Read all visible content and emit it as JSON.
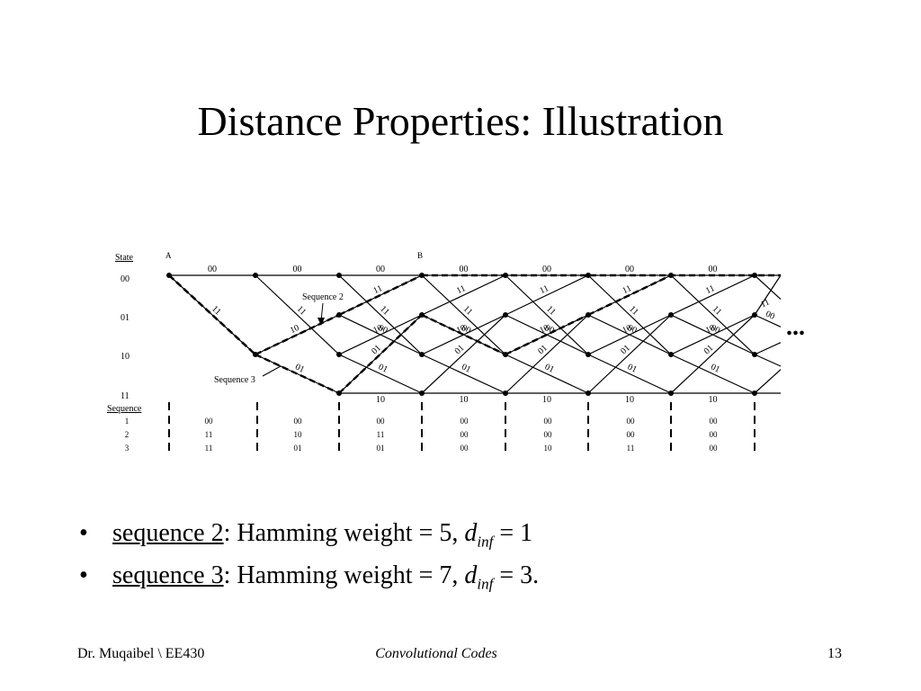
{
  "slide": {
    "title": "Distance Properties: Illustration",
    "footer": {
      "author": "Dr. Muqaibel \\ EE430",
      "course": "Convolutional Codes",
      "page": "13"
    }
  },
  "diagram": {
    "state_header": "State",
    "states": [
      "00",
      "01",
      "10",
      "11"
    ],
    "node_labels": [
      "A",
      "B"
    ],
    "annotations": [
      "Sequence 2",
      "Sequence 3"
    ],
    "continuation": "...",
    "sequence_header": "Sequence",
    "sequence_rows": [
      {
        "id": "1",
        "outputs": [
          "00",
          "00",
          "00",
          "00",
          "00",
          "00",
          "00"
        ]
      },
      {
        "id": "2",
        "outputs": [
          "11",
          "10",
          "11",
          "00",
          "00",
          "00",
          "00"
        ]
      },
      {
        "id": "3",
        "outputs": [
          "11",
          "01",
          "01",
          "00",
          "10",
          "11",
          "00"
        ]
      }
    ],
    "branch_labels": {
      "top": [
        "00",
        "00",
        "00",
        "00",
        "00",
        "00",
        "00"
      ],
      "diag_down": [
        "11",
        "11",
        "11",
        "11",
        "11",
        "11",
        "11"
      ],
      "diag_up": [
        "11",
        "11",
        "11",
        "11",
        "11",
        "11"
      ],
      "s1_to_s0": [
        "00",
        "00",
        "00",
        "00",
        "00",
        "00"
      ],
      "s1_to_s2": [
        "10",
        "10",
        "10",
        "10",
        "10",
        "10"
      ],
      "s2_to_s1": [
        "10",
        "10",
        "10",
        "10",
        "10",
        "10"
      ],
      "s2_to_s3": [
        "01",
        "01",
        "01",
        "01",
        "01",
        "01"
      ],
      "s3_to_s1": [
        "01",
        "01",
        "01",
        "01",
        "01"
      ],
      "s3_to_s3": [
        "10",
        "10",
        "10",
        "10",
        "10"
      ]
    }
  },
  "bullets": [
    {
      "link": "sequence 2",
      "text": ": Hamming weight = 5, ",
      "var": "d",
      "sub": "inf",
      "tail": " = 1"
    },
    {
      "link": "sequence 3",
      "text": ": Hamming weight = 7, ",
      "var": "d",
      "sub": "inf",
      "tail": " = 3."
    }
  ]
}
